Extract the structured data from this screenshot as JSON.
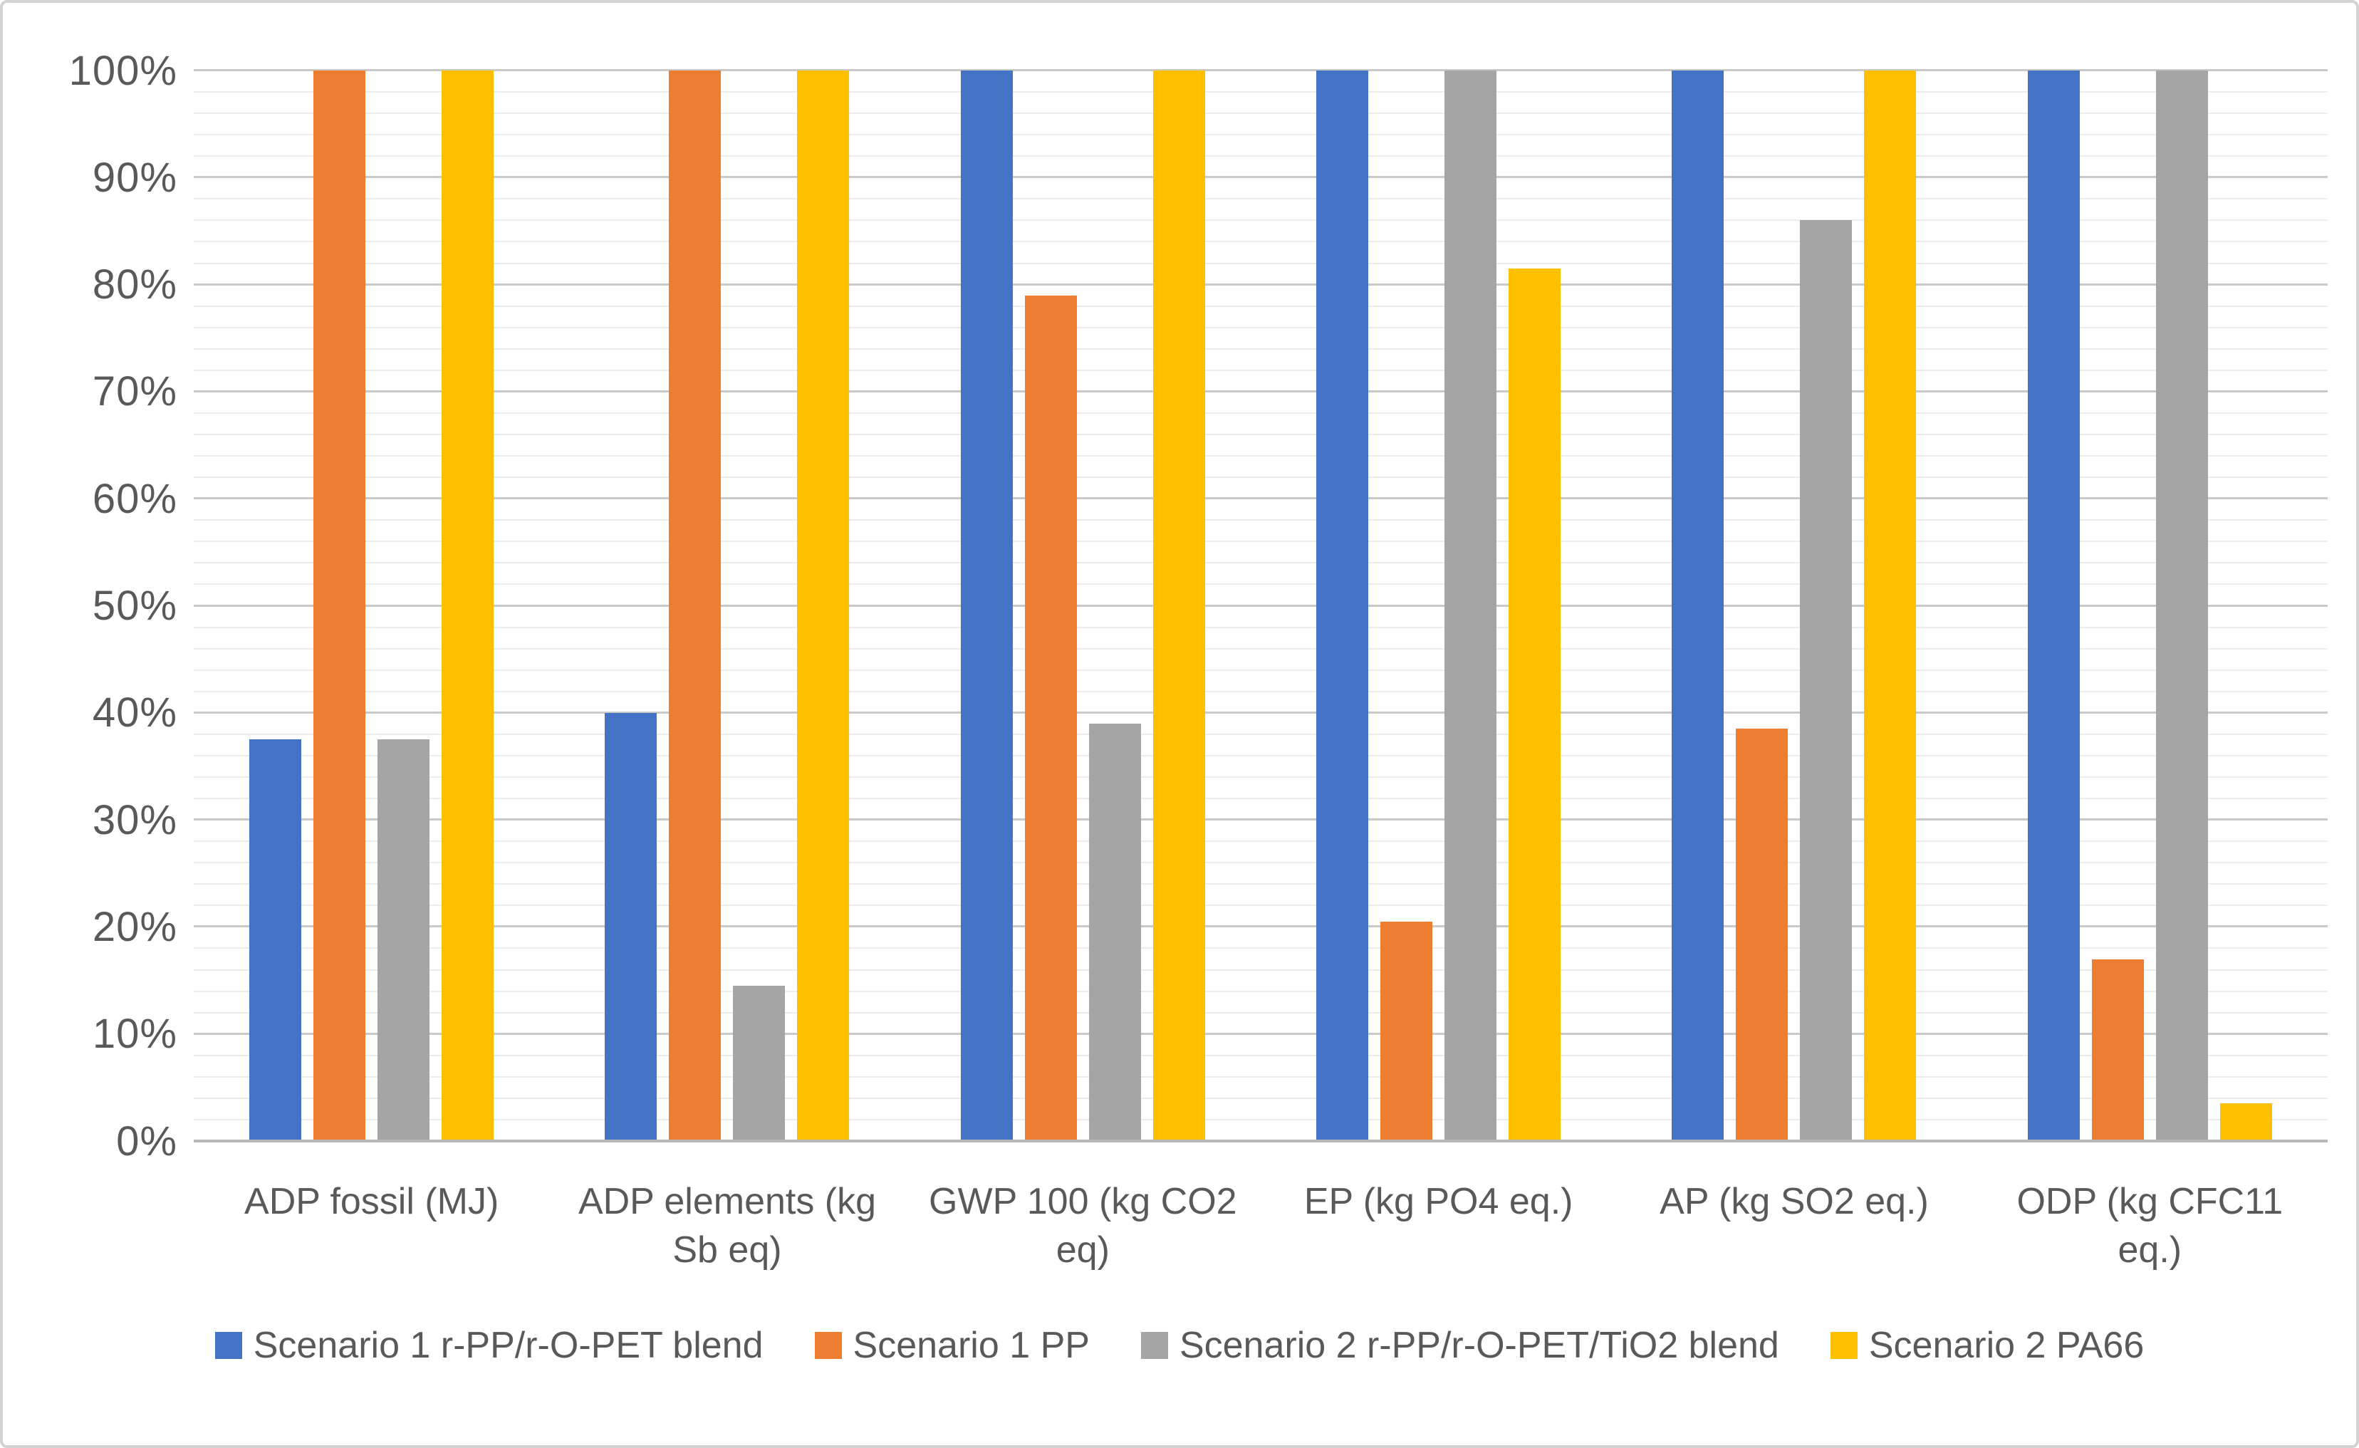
{
  "chart_data": {
    "type": "bar",
    "title": "",
    "xlabel": "",
    "ylabel": "",
    "ylim": [
      0,
      100
    ],
    "y_unit": "%",
    "y_major_step": 10,
    "y_minor_step": 2,
    "grid": "horizontal, major and minor lines",
    "legend_position": "bottom",
    "y_ticks": [
      "100%",
      "90%",
      "80%",
      "70%",
      "60%",
      "50%",
      "40%",
      "30%",
      "20%",
      "10%",
      "0%"
    ],
    "categories": [
      "ADP fossil (MJ)",
      "ADP elements (kg Sb eq)",
      "GWP 100 (kg CO2 eq)",
      "EP (kg PO4 eq.)",
      "AP (kg SO2 eq.)",
      "ODP (kg CFC11 eq.)"
    ],
    "series": [
      {
        "name": "Scenario 1 r-PP/r-O-PET blend",
        "color": "#4472C4",
        "values": [
          37.5,
          40,
          100,
          100,
          100,
          100
        ]
      },
      {
        "name": "Scenario 1 PP",
        "color": "#ED7D31",
        "values": [
          100,
          100,
          79,
          20.5,
          38.5,
          17
        ]
      },
      {
        "name": "Scenario 2 r-PP/r-O-PET/TiO2 blend",
        "color": "#A5A5A5",
        "values": [
          37.5,
          14.5,
          39,
          100,
          86,
          100
        ]
      },
      {
        "name": "Scenario 2 PA66",
        "color": "#FFC000",
        "values": [
          100,
          100,
          100,
          81.5,
          100,
          3.5
        ]
      }
    ],
    "colors": {
      "axis_text": "#595959",
      "major_gridline": "#c9c9c9",
      "minor_gridline": "#ececec",
      "axis_line": "#b8b8b8"
    }
  }
}
